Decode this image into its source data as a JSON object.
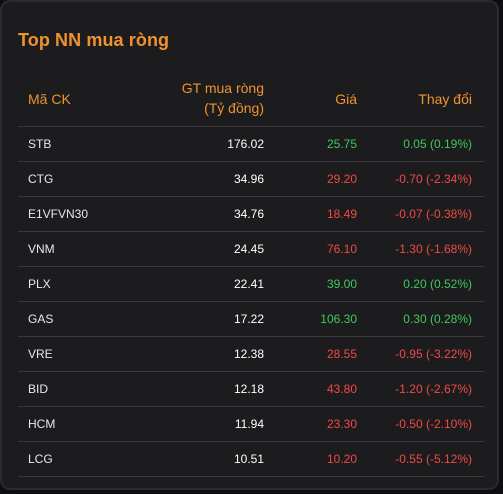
{
  "title": "Top NN mua ròng",
  "colors": {
    "accent": "#f0922f",
    "up": "#3ec95a",
    "down": "#f04a45"
  },
  "columns": {
    "code": "Mã CK",
    "value_line1": "GT mua ròng",
    "value_line2": "(Tỷ đồng)",
    "price": "Giá",
    "change": "Thay đổi"
  },
  "rows": [
    {
      "code": "STB",
      "value": "176.02",
      "price": "25.75",
      "change": "0.05 (0.19%)",
      "trend": "up"
    },
    {
      "code": "CTG",
      "value": "34.96",
      "price": "29.20",
      "change": "-0.70 (-2.34%)",
      "trend": "down"
    },
    {
      "code": "E1VFVN30",
      "value": "34.76",
      "price": "18.49",
      "change": "-0.07 (-0.38%)",
      "trend": "down"
    },
    {
      "code": "VNM",
      "value": "24.45",
      "price": "76.10",
      "change": "-1.30 (-1.68%)",
      "trend": "down"
    },
    {
      "code": "PLX",
      "value": "22.41",
      "price": "39.00",
      "change": "0.20 (0.52%)",
      "trend": "up"
    },
    {
      "code": "GAS",
      "value": "17.22",
      "price": "106.30",
      "change": "0.30 (0.28%)",
      "trend": "up"
    },
    {
      "code": "VRE",
      "value": "12.38",
      "price": "28.55",
      "change": "-0.95 (-3.22%)",
      "trend": "down"
    },
    {
      "code": "BID",
      "value": "12.18",
      "price": "43.80",
      "change": "-1.20 (-2.67%)",
      "trend": "down"
    },
    {
      "code": "HCM",
      "value": "11.94",
      "price": "23.30",
      "change": "-0.50 (-2.10%)",
      "trend": "down"
    },
    {
      "code": "LCG",
      "value": "10.51",
      "price": "10.20",
      "change": "-0.55 (-5.12%)",
      "trend": "down"
    }
  ]
}
